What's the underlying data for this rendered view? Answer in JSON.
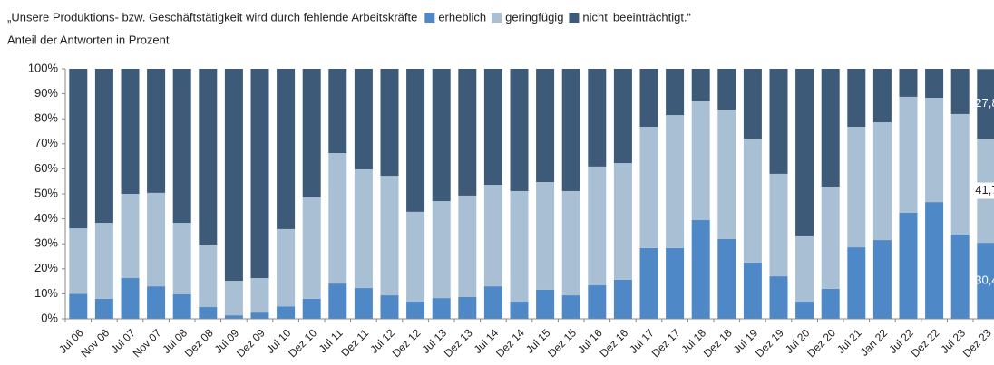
{
  "chart_data": {
    "type": "stacked_bar",
    "title": "„Unsere Produktions- bzw. Geschäftstätigkeit wird durch fehlende Arbeitskräfte",
    "title_suffix": "beeinträchtigt.“",
    "subtitle": "Anteil der Antworten in Prozent",
    "categories": [
      "Jul 06",
      "Nov 06",
      "Jul 07",
      "Nov 07",
      "Jul 08",
      "Dez 08",
      "Jul 09",
      "Dez 09",
      "Jul 10",
      "Dez 10",
      "Jul 11",
      "Dez 11",
      "Jul 12",
      "Dez 12",
      "Jul 13",
      "Dez 13",
      "Jul 14",
      "Dez 14",
      "Jul 15",
      "Dez 15",
      "Jul 16",
      "Dez 16",
      "Jul 17",
      "Dez 17",
      "Jul 18",
      "Dez 18",
      "Jul 19",
      "Dez 19",
      "Jul 20",
      "Dez 20",
      "Jul 21",
      "Jan 22",
      "Jul 22",
      "Dez 22",
      "Jul 23",
      "Dez 23"
    ],
    "series": [
      {
        "name": "erheblich",
        "color": "#4f88c6",
        "values": [
          10,
          8,
          16.3,
          13,
          9.8,
          4.7,
          1.4,
          2.5,
          5,
          8,
          14.1,
          12.3,
          9.4,
          6.9,
          8.3,
          8.7,
          13,
          6.9,
          11.6,
          9.4,
          13.4,
          15.6,
          28.3,
          28.3,
          39.5,
          31.9,
          22.5,
          17,
          6.9,
          12,
          28.6,
          31.5,
          42.4,
          46.7,
          33.7,
          30.4
        ],
        "value_labels": [
          null,
          null,
          null,
          null,
          null,
          null,
          null,
          null,
          null,
          null,
          null,
          null,
          null,
          null,
          null,
          null,
          null,
          null,
          null,
          null,
          null,
          null,
          null,
          null,
          null,
          null,
          null,
          null,
          null,
          null,
          null,
          null,
          null,
          null,
          null,
          "30,4"
        ]
      },
      {
        "name": "geringfügig",
        "color": "#a9bfd4",
        "values": [
          26.2,
          30.4,
          33.7,
          37.4,
          28.6,
          25,
          13.8,
          13.8,
          30.9,
          40.6,
          52.2,
          47.5,
          47.8,
          35.9,
          38.8,
          40.6,
          40.6,
          44.2,
          43.1,
          41.7,
          47.5,
          46.7,
          48.5,
          53.2,
          47.5,
          51.8,
          49.6,
          41,
          26.1,
          40.9,
          48.2,
          47.1,
          46.4,
          41.7,
          48.2,
          41.7
        ],
        "value_labels": [
          null,
          null,
          null,
          null,
          null,
          null,
          null,
          null,
          null,
          null,
          null,
          null,
          null,
          null,
          null,
          null,
          null,
          null,
          null,
          null,
          null,
          null,
          null,
          null,
          null,
          null,
          null,
          null,
          null,
          null,
          null,
          null,
          null,
          null,
          null,
          "41,7"
        ]
      },
      {
        "name": "nicht",
        "color": "#3d5a78",
        "values": [
          63.8,
          61.6,
          50,
          49.6,
          61.6,
          70.3,
          84.8,
          83.7,
          64.1,
          51.4,
          33.7,
          40.2,
          42.8,
          57.2,
          52.9,
          50.7,
          46.4,
          48.9,
          45.3,
          48.9,
          39.1,
          37.7,
          23.2,
          18.5,
          13,
          16.3,
          27.9,
          42,
          67,
          47.1,
          23.2,
          21.4,
          11.2,
          11.6,
          18.1,
          27.8
        ],
        "value_labels": [
          null,
          null,
          null,
          null,
          null,
          null,
          null,
          null,
          null,
          null,
          null,
          null,
          null,
          null,
          null,
          null,
          null,
          null,
          null,
          null,
          null,
          null,
          null,
          null,
          null,
          null,
          null,
          null,
          null,
          null,
          null,
          null,
          null,
          null,
          null,
          "27,8"
        ]
      }
    ],
    "ylim": [
      0,
      100
    ],
    "yticks": [
      {
        "value": 0,
        "label": "0%"
      },
      {
        "value": 10,
        "label": "10%"
      },
      {
        "value": 20,
        "label": "20%"
      },
      {
        "value": 30,
        "label": "30%"
      },
      {
        "value": 40,
        "label": "40%"
      },
      {
        "value": 50,
        "label": "50%"
      },
      {
        "value": 60,
        "label": "60%"
      },
      {
        "value": 70,
        "label": "70%"
      },
      {
        "value": 80,
        "label": "80%"
      },
      {
        "value": 90,
        "label": "90%"
      },
      {
        "value": 100,
        "label": "100%"
      }
    ],
    "grid": false
  }
}
